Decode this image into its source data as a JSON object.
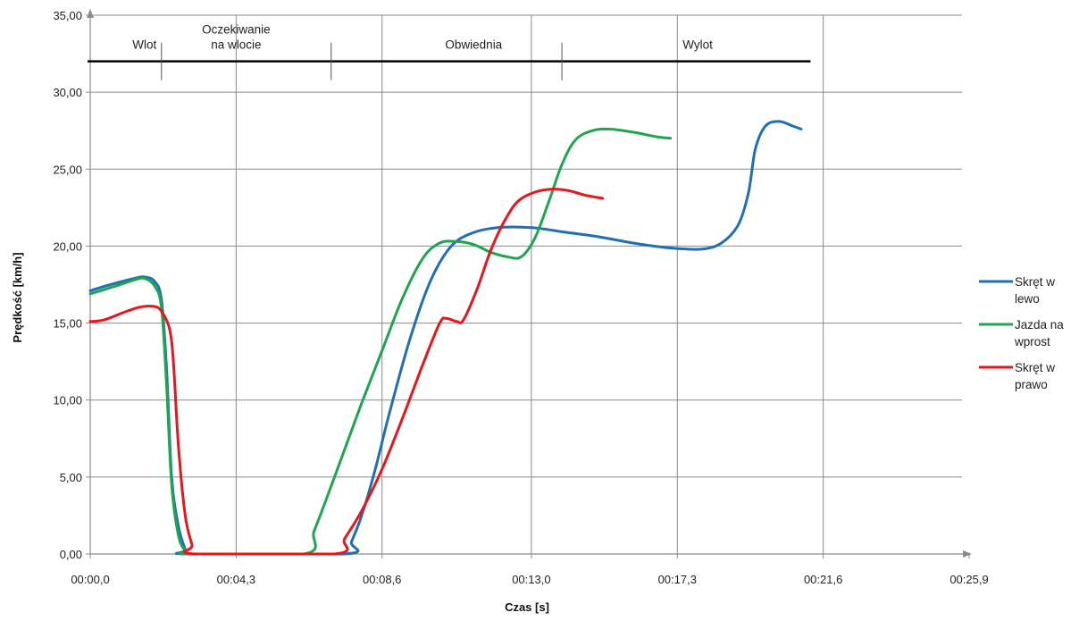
{
  "chart_data": {
    "type": "line",
    "xlabel": "Czas [s]",
    "ylabel": "Prędkość [km/h]",
    "x_ticks": [
      0,
      4.3,
      8.6,
      13.0,
      17.3,
      21.6,
      25.9
    ],
    "x_tick_labels": [
      "00:00,0",
      "00:04,3",
      "00:08,6",
      "00:13,0",
      "00:17,3",
      "00:21,6",
      "00:25,9"
    ],
    "y_ticks": [
      0,
      5,
      10,
      15,
      20,
      25,
      30,
      35
    ],
    "y_tick_labels": [
      "0,00",
      "5,00",
      "10,00",
      "15,00",
      "20,00",
      "25,00",
      "30,00",
      "35,00"
    ],
    "xlim": [
      0,
      25.9
    ],
    "ylim": [
      0,
      35
    ],
    "grid": true,
    "legend_position": "right",
    "phases": {
      "level": 32.0,
      "dividers": [
        0,
        2.1,
        7.1,
        13.9,
        20.7
      ],
      "labels": [
        {
          "lines": [
            "Wlot"
          ],
          "x": 1.6
        },
        {
          "lines": [
            "Oczekiwanie",
            "na wlocie"
          ],
          "x": 4.3
        },
        {
          "lines": [
            "Obwiednia"
          ],
          "x": 11.3
        },
        {
          "lines": [
            "Wylot"
          ],
          "x": 17.9
        }
      ]
    },
    "series": [
      {
        "name": "Skręt w lewo",
        "legend_lines": [
          "Skręt w",
          "lewo"
        ],
        "color": "#1f6fb5",
        "points": [
          [
            0,
            17.1
          ],
          [
            0.6,
            17.5
          ],
          [
            1.3,
            17.9
          ],
          [
            1.6,
            18.0
          ],
          [
            1.9,
            17.7
          ],
          [
            2.1,
            16.5
          ],
          [
            2.25,
            12
          ],
          [
            2.4,
            5
          ],
          [
            2.6,
            1.8
          ],
          [
            2.8,
            0.3
          ],
          [
            2.9,
            0
          ],
          [
            7.5,
            0
          ],
          [
            7.7,
            0.8
          ],
          [
            8.0,
            2.5
          ],
          [
            8.4,
            5.5
          ],
          [
            8.8,
            9.0
          ],
          [
            9.4,
            13.8
          ],
          [
            10.0,
            17.6
          ],
          [
            10.6,
            19.9
          ],
          [
            11.2,
            20.8
          ],
          [
            12.0,
            21.2
          ],
          [
            13.0,
            21.2
          ],
          [
            14.0,
            20.9
          ],
          [
            15.0,
            20.6
          ],
          [
            16.0,
            20.2
          ],
          [
            17.0,
            19.9
          ],
          [
            18.0,
            19.8
          ],
          [
            18.6,
            20.2
          ],
          [
            19.1,
            21.4
          ],
          [
            19.4,
            23.5
          ],
          [
            19.6,
            26.3
          ],
          [
            19.9,
            27.8
          ],
          [
            20.3,
            28.1
          ],
          [
            20.7,
            27.8
          ],
          [
            20.95,
            27.6
          ]
        ]
      },
      {
        "name": "Jazda na wprost",
        "legend_lines": [
          "Jazda na",
          "wprost"
        ],
        "color": "#1ea64e",
        "points": [
          [
            0,
            16.9
          ],
          [
            0.6,
            17.3
          ],
          [
            1.3,
            17.8
          ],
          [
            1.6,
            17.9
          ],
          [
            1.9,
            17.4
          ],
          [
            2.1,
            16.0
          ],
          [
            2.25,
            11
          ],
          [
            2.4,
            4.5
          ],
          [
            2.6,
            1.2
          ],
          [
            2.8,
            0.2
          ],
          [
            2.9,
            0
          ],
          [
            6.3,
            0
          ],
          [
            6.6,
            1.5
          ],
          [
            7.0,
            3.8
          ],
          [
            7.5,
            6.8
          ],
          [
            8.0,
            9.8
          ],
          [
            8.6,
            13.2
          ],
          [
            9.2,
            16.6
          ],
          [
            9.8,
            19.2
          ],
          [
            10.3,
            20.2
          ],
          [
            10.8,
            20.3
          ],
          [
            11.3,
            20.1
          ],
          [
            11.8,
            19.6
          ],
          [
            12.3,
            19.3
          ],
          [
            12.7,
            19.3
          ],
          [
            13.1,
            20.5
          ],
          [
            13.5,
            22.8
          ],
          [
            13.9,
            25.3
          ],
          [
            14.3,
            26.9
          ],
          [
            14.8,
            27.5
          ],
          [
            15.3,
            27.6
          ],
          [
            16.0,
            27.4
          ],
          [
            16.7,
            27.1
          ],
          [
            17.1,
            27.0
          ]
        ]
      },
      {
        "name": "Skręt w prawo",
        "legend_lines": [
          "Skręt w",
          "prawo"
        ],
        "color": "#e8161c",
        "points": [
          [
            0,
            15.1
          ],
          [
            0.4,
            15.2
          ],
          [
            1.0,
            15.7
          ],
          [
            1.4,
            16.0
          ],
          [
            1.7,
            16.1
          ],
          [
            2.0,
            16.0
          ],
          [
            2.2,
            15.4
          ],
          [
            2.35,
            14.5
          ],
          [
            2.45,
            12.5
          ],
          [
            2.6,
            7.0
          ],
          [
            2.8,
            2.5
          ],
          [
            3.0,
            0.6
          ],
          [
            3.1,
            0
          ],
          [
            7.2,
            0
          ],
          [
            7.5,
            1.0
          ],
          [
            8.0,
            2.8
          ],
          [
            8.6,
            5.5
          ],
          [
            9.2,
            8.8
          ],
          [
            9.8,
            12.3
          ],
          [
            10.3,
            15.0
          ],
          [
            10.5,
            15.3
          ],
          [
            10.8,
            15.1
          ],
          [
            11.0,
            15.2
          ],
          [
            11.4,
            17.2
          ],
          [
            11.8,
            19.7
          ],
          [
            12.2,
            21.6
          ],
          [
            12.6,
            22.9
          ],
          [
            13.1,
            23.5
          ],
          [
            13.6,
            23.7
          ],
          [
            14.1,
            23.6
          ],
          [
            14.6,
            23.3
          ],
          [
            15.1,
            23.1
          ]
        ]
      }
    ]
  }
}
